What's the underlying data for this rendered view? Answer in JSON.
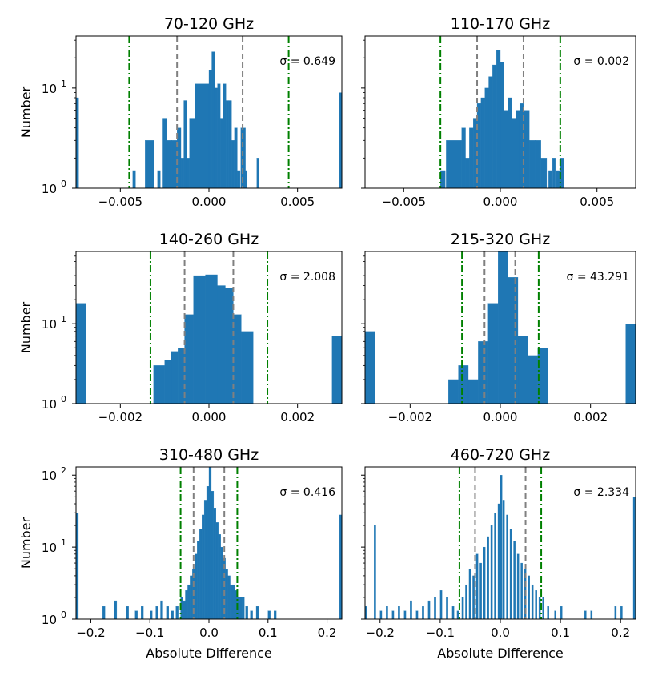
{
  "style": {
    "bar_color": "#1f77b4",
    "median_line_color": "#808080",
    "sigma_line_color": "#008000"
  },
  "chart_data": [
    {
      "type": "bar",
      "title": "70-120 GHz",
      "ylabel": "Number",
      "xlabel": "",
      "scale": "log",
      "xlim": [
        -0.0075,
        0.0075
      ],
      "ylim": [
        1,
        33
      ],
      "xticks": [
        -0.005,
        0.0,
        0.005
      ],
      "xtick_labels": [
        "−0.005",
        "0.000",
        "0.005"
      ],
      "yticks": [
        1,
        10
      ],
      "ytick_labels": [
        "10^0",
        "10^1"
      ],
      "annotation": "σ = 0.649",
      "inner_lines": [
        -0.0018,
        0.0019
      ],
      "outer_lines": [
        -0.0045,
        0.0045
      ],
      "bins": [
        {
          "x": -0.0075,
          "w": 0.00015,
          "v": 8
        },
        {
          "x": -0.0043,
          "w": 0.00016,
          "v": 1.5
        },
        {
          "x": -0.0036,
          "w": 0.0005,
          "v": 3
        },
        {
          "x": -0.0029,
          "w": 0.00016,
          "v": 1.5
        },
        {
          "x": -0.0026,
          "w": 0.00022,
          "v": 5
        },
        {
          "x": -0.0024,
          "w": 0.0003,
          "v": 3
        },
        {
          "x": -0.0021,
          "w": 0.0003,
          "v": 3
        },
        {
          "x": -0.0018,
          "w": 0.00022,
          "v": 4
        },
        {
          "x": -0.00158,
          "w": 0.00016,
          "v": 2
        },
        {
          "x": -0.00142,
          "w": 0.00016,
          "v": 7.5
        },
        {
          "x": -0.00126,
          "w": 0.00016,
          "v": 2
        },
        {
          "x": -0.0011,
          "w": 0.0003,
          "v": 5
        },
        {
          "x": -0.0008,
          "w": 0.0008,
          "v": 11
        },
        {
          "x": 0.0,
          "w": 0.00016,
          "v": 15
        },
        {
          "x": 0.00016,
          "w": 0.00016,
          "v": 23
        },
        {
          "x": 0.00032,
          "w": 0.00016,
          "v": 10
        },
        {
          "x": 0.00048,
          "w": 0.00016,
          "v": 11
        },
        {
          "x": 0.00064,
          "w": 0.00016,
          "v": 5
        },
        {
          "x": 0.0008,
          "w": 0.00016,
          "v": 11
        },
        {
          "x": 0.00096,
          "w": 0.00016,
          "v": 7.5
        },
        {
          "x": 0.00112,
          "w": 0.00016,
          "v": 7.5
        },
        {
          "x": 0.00128,
          "w": 0.00016,
          "v": 3
        },
        {
          "x": 0.00144,
          "w": 0.00016,
          "v": 4
        },
        {
          "x": 0.0016,
          "w": 0.00016,
          "v": 1.5
        },
        {
          "x": 0.0018,
          "w": 0.00026,
          "v": 4
        },
        {
          "x": 0.00206,
          "w": 0.0001,
          "v": 1.5
        },
        {
          "x": 0.0027,
          "w": 0.00014,
          "v": 2
        },
        {
          "x": 0.00735,
          "w": 0.00015,
          "v": 9
        }
      ]
    },
    {
      "type": "bar",
      "title": "110-170 GHz",
      "ylabel": "",
      "xlabel": "",
      "scale": "log",
      "xlim": [
        -0.007,
        0.007
      ],
      "ylim": [
        1,
        33
      ],
      "xticks": [
        -0.005,
        0.0,
        0.005
      ],
      "xtick_labels": [
        "−0.005",
        "0.000",
        "0.005"
      ],
      "yticks": [
        1,
        10
      ],
      "ytick_labels": [
        "",
        ""
      ],
      "annotation": "σ = 0.002",
      "inner_lines": [
        -0.0012,
        0.0012
      ],
      "outer_lines": [
        -0.0031,
        0.0031
      ],
      "bins": [
        {
          "x": -0.0031,
          "w": 0.00025,
          "v": 1.5
        },
        {
          "x": -0.0028,
          "w": 0.0008,
          "v": 3
        },
        {
          "x": -0.002,
          "w": 0.0002,
          "v": 4
        },
        {
          "x": -0.0018,
          "w": 0.0002,
          "v": 2
        },
        {
          "x": -0.0016,
          "w": 0.0002,
          "v": 4
        },
        {
          "x": -0.0014,
          "w": 0.0002,
          "v": 5
        },
        {
          "x": -0.0012,
          "w": 0.0002,
          "v": 7
        },
        {
          "x": -0.001,
          "w": 0.0002,
          "v": 8
        },
        {
          "x": -0.0008,
          "w": 0.0002,
          "v": 10
        },
        {
          "x": -0.0006,
          "w": 0.0002,
          "v": 13
        },
        {
          "x": -0.0004,
          "w": 0.0002,
          "v": 17
        },
        {
          "x": -0.0002,
          "w": 0.0002,
          "v": 24
        },
        {
          "x": 0.0,
          "w": 0.0002,
          "v": 18
        },
        {
          "x": 0.0002,
          "w": 0.0002,
          "v": 6
        },
        {
          "x": 0.0004,
          "w": 0.0002,
          "v": 8
        },
        {
          "x": 0.0006,
          "w": 0.0002,
          "v": 5
        },
        {
          "x": 0.0008,
          "w": 0.0002,
          "v": 6
        },
        {
          "x": 0.001,
          "w": 0.0002,
          "v": 7
        },
        {
          "x": 0.0012,
          "w": 0.0003,
          "v": 6
        },
        {
          "x": 0.0015,
          "w": 0.0003,
          "v": 3
        },
        {
          "x": 0.0018,
          "w": 0.0003,
          "v": 3
        },
        {
          "x": 0.0021,
          "w": 0.0003,
          "v": 2
        },
        {
          "x": 0.0025,
          "w": 0.00015,
          "v": 1.5
        },
        {
          "x": 0.0027,
          "w": 0.00015,
          "v": 2
        },
        {
          "x": 0.0029,
          "w": 0.0002,
          "v": 1.5
        },
        {
          "x": 0.0031,
          "w": 0.0002,
          "v": 2
        }
      ]
    },
    {
      "type": "bar",
      "title": "140-260 GHz",
      "ylabel": "Number",
      "xlabel": "",
      "scale": "log",
      "xlim": [
        -0.003,
        0.003
      ],
      "ylim": [
        1,
        80
      ],
      "xticks": [
        -0.002,
        0.0,
        0.002
      ],
      "xtick_labels": [
        "−0.002",
        "0.000",
        "0.002"
      ],
      "yticks": [
        1,
        10
      ],
      "ytick_labels": [
        "10^0",
        "10^1"
      ],
      "annotation": "σ = 2.008",
      "inner_lines": [
        -0.00055,
        0.00055
      ],
      "outer_lines": [
        -0.00132,
        0.00132
      ],
      "bins": [
        {
          "x": -0.003,
          "w": 0.00022,
          "v": 18
        },
        {
          "x": -0.00125,
          "w": 0.00025,
          "v": 3
        },
        {
          "x": -0.001,
          "w": 0.00015,
          "v": 3.5
        },
        {
          "x": -0.00085,
          "w": 0.00015,
          "v": 4.5
        },
        {
          "x": -0.0007,
          "w": 0.00015,
          "v": 5
        },
        {
          "x": -0.00055,
          "w": 0.0002,
          "v": 13
        },
        {
          "x": -0.00035,
          "w": 0.00027,
          "v": 40
        },
        {
          "x": -8e-05,
          "w": 0.00027,
          "v": 41
        },
        {
          "x": 0.00019,
          "w": 0.00018,
          "v": 30
        },
        {
          "x": 0.00037,
          "w": 0.00018,
          "v": 28
        },
        {
          "x": 0.00055,
          "w": 0.00018,
          "v": 13
        },
        {
          "x": 0.00073,
          "w": 0.00027,
          "v": 8
        },
        {
          "x": 0.00278,
          "w": 0.00022,
          "v": 7
        }
      ]
    },
    {
      "type": "bar",
      "title": "215-320 GHz",
      "ylabel": "",
      "xlabel": "",
      "scale": "log",
      "xlim": [
        -0.003,
        0.003
      ],
      "ylim": [
        1,
        80
      ],
      "xticks": [
        -0.002,
        0.0,
        0.002
      ],
      "xtick_labels": [
        "−0.002",
        "0.000",
        "0.002"
      ],
      "yticks": [
        1,
        10
      ],
      "ytick_labels": [
        "",
        ""
      ],
      "annotation": "σ = 43.291",
      "inner_lines": [
        -0.00035,
        0.00033
      ],
      "outer_lines": [
        -0.00085,
        0.00085
      ],
      "bins": [
        {
          "x": -0.003,
          "w": 0.00022,
          "v": 8
        },
        {
          "x": -0.00115,
          "w": 0.00022,
          "v": 2
        },
        {
          "x": -0.00093,
          "w": 0.00022,
          "v": 3
        },
        {
          "x": -0.00071,
          "w": 0.00022,
          "v": 2
        },
        {
          "x": -0.00049,
          "w": 0.00022,
          "v": 6
        },
        {
          "x": -0.00027,
          "w": 0.00022,
          "v": 18
        },
        {
          "x": -5e-05,
          "w": 0.00022,
          "v": 80
        },
        {
          "x": 0.00017,
          "w": 0.00022,
          "v": 38
        },
        {
          "x": 0.00039,
          "w": 0.00022,
          "v": 7
        },
        {
          "x": 0.00061,
          "w": 0.00022,
          "v": 4
        },
        {
          "x": 0.00083,
          "w": 0.00022,
          "v": 5
        },
        {
          "x": 0.00278,
          "w": 0.00022,
          "v": 10
        }
      ]
    },
    {
      "type": "bar",
      "title": "310-480 GHz",
      "ylabel": "Number",
      "xlabel": "Absolute Difference",
      "scale": "log",
      "xlim": [
        -0.225,
        0.225
      ],
      "ylim": [
        1,
        130
      ],
      "xticks": [
        -0.2,
        -0.1,
        0.0,
        0.1,
        0.2
      ],
      "xtick_labels": [
        "−0.2",
        "−0.1",
        "0.0",
        "0.1",
        "0.2"
      ],
      "yticks": [
        1,
        10,
        100
      ],
      "ytick_labels": [
        "10^0",
        "10^1",
        "10^2"
      ],
      "annotation": "σ = 0.416",
      "inner_lines": [
        -0.026,
        0.026
      ],
      "outer_lines": [
        -0.048,
        0.048
      ],
      "bins": [
        {
          "x": -0.225,
          "w": 0.004,
          "v": 30
        },
        {
          "x": -0.18,
          "w": 0.004,
          "v": 1.5
        },
        {
          "x": -0.16,
          "w": 0.004,
          "v": 1.8
        },
        {
          "x": -0.14,
          "w": 0.004,
          "v": 1.5
        },
        {
          "x": -0.125,
          "w": 0.004,
          "v": 1.3
        },
        {
          "x": -0.115,
          "w": 0.004,
          "v": 1.5
        },
        {
          "x": -0.1,
          "w": 0.004,
          "v": 1.3
        },
        {
          "x": -0.09,
          "w": 0.004,
          "v": 1.5
        },
        {
          "x": -0.082,
          "w": 0.004,
          "v": 1.8
        },
        {
          "x": -0.072,
          "w": 0.004,
          "v": 1.5
        },
        {
          "x": -0.064,
          "w": 0.004,
          "v": 1.3
        },
        {
          "x": -0.056,
          "w": 0.004,
          "v": 1.5
        },
        {
          "x": -0.048,
          "w": 0.004,
          "v": 2
        },
        {
          "x": -0.044,
          "w": 0.004,
          "v": 1.8
        },
        {
          "x": -0.04,
          "w": 0.004,
          "v": 2.5
        },
        {
          "x": -0.036,
          "w": 0.004,
          "v": 3
        },
        {
          "x": -0.032,
          "w": 0.004,
          "v": 4
        },
        {
          "x": -0.028,
          "w": 0.004,
          "v": 5
        },
        {
          "x": -0.024,
          "w": 0.004,
          "v": 8
        },
        {
          "x": -0.02,
          "w": 0.004,
          "v": 12
        },
        {
          "x": -0.016,
          "w": 0.004,
          "v": 18
        },
        {
          "x": -0.012,
          "w": 0.004,
          "v": 28
        },
        {
          "x": -0.008,
          "w": 0.004,
          "v": 45
        },
        {
          "x": -0.004,
          "w": 0.004,
          "v": 70
        },
        {
          "x": 0.0,
          "w": 0.004,
          "v": 130
        },
        {
          "x": 0.004,
          "w": 0.004,
          "v": 60
        },
        {
          "x": 0.008,
          "w": 0.004,
          "v": 35
        },
        {
          "x": 0.012,
          "w": 0.004,
          "v": 22
        },
        {
          "x": 0.016,
          "w": 0.004,
          "v": 15
        },
        {
          "x": 0.02,
          "w": 0.004,
          "v": 10
        },
        {
          "x": 0.024,
          "w": 0.004,
          "v": 7
        },
        {
          "x": 0.028,
          "w": 0.004,
          "v": 5
        },
        {
          "x": 0.032,
          "w": 0.004,
          "v": 4
        },
        {
          "x": 0.036,
          "w": 0.004,
          "v": 3
        },
        {
          "x": 0.04,
          "w": 0.004,
          "v": 3
        },
        {
          "x": 0.044,
          "w": 0.004,
          "v": 2.5
        },
        {
          "x": 0.048,
          "w": 0.004,
          "v": 2
        },
        {
          "x": 0.052,
          "w": 0.004,
          "v": 2
        },
        {
          "x": 0.056,
          "w": 0.004,
          "v": 2
        },
        {
          "x": 0.062,
          "w": 0.004,
          "v": 1.5
        },
        {
          "x": 0.07,
          "w": 0.004,
          "v": 1.3
        },
        {
          "x": 0.08,
          "w": 0.004,
          "v": 1.5
        },
        {
          "x": 0.1,
          "w": 0.004,
          "v": 1.3
        },
        {
          "x": 0.11,
          "w": 0.004,
          "v": 1.3
        },
        {
          "x": 0.221,
          "w": 0.004,
          "v": 28
        }
      ]
    },
    {
      "type": "bar",
      "title": "460-720 GHz",
      "ylabel": "",
      "xlabel": "Absolute Difference",
      "scale": "log",
      "xlim": [
        -0.225,
        0.225
      ],
      "ylim": [
        1,
        130
      ],
      "xticks": [
        -0.2,
        -0.1,
        0.0,
        0.1,
        0.2
      ],
      "xtick_labels": [
        "−0.2",
        "−0.1",
        "0.0",
        "0.1",
        "0.2"
      ],
      "yticks": [
        1,
        10,
        100
      ],
      "ytick_labels": [
        "",
        "",
        ""
      ],
      "annotation": "σ = 2.334",
      "inner_lines": [
        -0.042,
        0.042
      ],
      "outer_lines": [
        -0.068,
        0.068
      ],
      "bins": [
        {
          "x": -0.225,
          "w": 0.003,
          "v": 1.5
        },
        {
          "x": -0.21,
          "w": 0.003,
          "v": 20
        },
        {
          "x": -0.2,
          "w": 0.003,
          "v": 1.3
        },
        {
          "x": -0.19,
          "w": 0.003,
          "v": 1.5
        },
        {
          "x": -0.18,
          "w": 0.003,
          "v": 1.3
        },
        {
          "x": -0.17,
          "w": 0.003,
          "v": 1.5
        },
        {
          "x": -0.16,
          "w": 0.003,
          "v": 1.3
        },
        {
          "x": -0.15,
          "w": 0.003,
          "v": 1.8
        },
        {
          "x": -0.14,
          "w": 0.003,
          "v": 1.3
        },
        {
          "x": -0.13,
          "w": 0.003,
          "v": 1.5
        },
        {
          "x": -0.12,
          "w": 0.003,
          "v": 1.8
        },
        {
          "x": -0.11,
          "w": 0.003,
          "v": 2
        },
        {
          "x": -0.1,
          "w": 0.003,
          "v": 2.5
        },
        {
          "x": -0.09,
          "w": 0.003,
          "v": 2
        },
        {
          "x": -0.08,
          "w": 0.003,
          "v": 1.5
        },
        {
          "x": -0.072,
          "w": 0.003,
          "v": 1.3
        },
        {
          "x": -0.064,
          "w": 0.003,
          "v": 2
        },
        {
          "x": -0.058,
          "w": 0.003,
          "v": 3
        },
        {
          "x": -0.052,
          "w": 0.003,
          "v": 5
        },
        {
          "x": -0.046,
          "w": 0.003,
          "v": 4
        },
        {
          "x": -0.04,
          "w": 0.003,
          "v": 8
        },
        {
          "x": -0.034,
          "w": 0.003,
          "v": 6
        },
        {
          "x": -0.028,
          "w": 0.003,
          "v": 10
        },
        {
          "x": -0.022,
          "w": 0.003,
          "v": 14
        },
        {
          "x": -0.016,
          "w": 0.003,
          "v": 20
        },
        {
          "x": -0.01,
          "w": 0.003,
          "v": 30
        },
        {
          "x": -0.004,
          "w": 0.003,
          "v": 40
        },
        {
          "x": 0.0,
          "w": 0.003,
          "v": 100
        },
        {
          "x": 0.004,
          "w": 0.003,
          "v": 45
        },
        {
          "x": 0.01,
          "w": 0.003,
          "v": 28
        },
        {
          "x": 0.016,
          "w": 0.003,
          "v": 18
        },
        {
          "x": 0.022,
          "w": 0.003,
          "v": 12
        },
        {
          "x": 0.028,
          "w": 0.003,
          "v": 8
        },
        {
          "x": 0.034,
          "w": 0.003,
          "v": 6
        },
        {
          "x": 0.04,
          "w": 0.003,
          "v": 5
        },
        {
          "x": 0.046,
          "w": 0.003,
          "v": 4
        },
        {
          "x": 0.052,
          "w": 0.003,
          "v": 3
        },
        {
          "x": 0.058,
          "w": 0.003,
          "v": 2.5
        },
        {
          "x": 0.064,
          "w": 0.003,
          "v": 2
        },
        {
          "x": 0.07,
          "w": 0.003,
          "v": 2
        },
        {
          "x": 0.078,
          "w": 0.003,
          "v": 1.5
        },
        {
          "x": 0.09,
          "w": 0.003,
          "v": 1.3
        },
        {
          "x": 0.1,
          "w": 0.003,
          "v": 1.5
        },
        {
          "x": 0.14,
          "w": 0.003,
          "v": 1.3
        },
        {
          "x": 0.15,
          "w": 0.003,
          "v": 1.3
        },
        {
          "x": 0.19,
          "w": 0.003,
          "v": 1.5
        },
        {
          "x": 0.2,
          "w": 0.003,
          "v": 1.5
        },
        {
          "x": 0.221,
          "w": 0.003,
          "v": 50
        }
      ]
    }
  ]
}
